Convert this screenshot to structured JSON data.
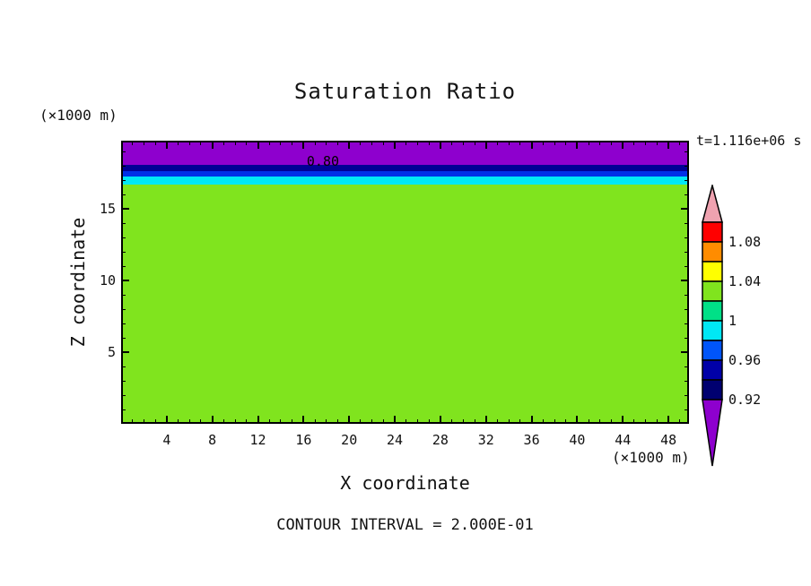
{
  "title": "Saturation Ratio",
  "header": {
    "y_units_label": "(×1000 m)",
    "time_label": "t=1.116e+06 s"
  },
  "footer": {
    "x_units_label": "(×1000 m)",
    "contour_interval": "CONTOUR INTERVAL = 2.000E-01"
  },
  "chart_data": {
    "type": "heatmap",
    "title": "Saturation Ratio",
    "xlabel": "X coordinate",
    "ylabel": "Z coordinate",
    "axis_units": "(×1000 m)",
    "xlim": [
      0,
      49.8
    ],
    "ylim": [
      0,
      19.75
    ],
    "x_ticks_major": [
      4,
      8,
      12,
      16,
      20,
      24,
      28,
      32,
      36,
      40,
      44,
      48
    ],
    "x_ticks_minor_step": 1,
    "y_ticks_major": [
      5,
      10,
      15
    ],
    "y_ticks_minor_step": 1,
    "grid": false,
    "time_annotation": "t=1.116e+06 s",
    "contour_interval_annotation": "CONTOUR INTERVAL = 2.000E-01",
    "contour_label": {
      "text": "0.80",
      "x": 17.7,
      "z": 18.3
    },
    "bands": [
      {
        "color": "#8E00CE",
        "z_from": 18.06,
        "z_to": 19.75
      },
      {
        "color": "#000096",
        "z_from": 17.63,
        "z_to": 18.06
      },
      {
        "color": "#0030E8",
        "z_from": 17.25,
        "z_to": 17.63
      },
      {
        "color": "#00E8F5",
        "z_from": 16.69,
        "z_to": 17.25
      },
      {
        "color": "#80E41E",
        "z_from": 0,
        "z_to": 16.69
      }
    ],
    "colorbar": {
      "tick_labels": [
        "1.08",
        "1.04",
        "1",
        "0.96",
        "0.92"
      ],
      "segments": [
        {
          "name": "above-range-arrow",
          "shape": "arrow-up",
          "color": "#EFA2B0"
        },
        {
          "color": "#FF0000",
          "label_below": "1.08"
        },
        {
          "color": "#FF8C00"
        },
        {
          "color": "#FFFF00",
          "label_below": "1.04"
        },
        {
          "color": "#80E41E"
        },
        {
          "color": "#00E087",
          "label_below": "1"
        },
        {
          "color": "#00E8F5"
        },
        {
          "color": "#0055FA",
          "label_below": "0.96"
        },
        {
          "color": "#0000A8"
        },
        {
          "color": "#000070",
          "label_below": "0.92"
        },
        {
          "name": "below-range-arrow",
          "shape": "arrow-down",
          "color": "#8E00CE"
        }
      ]
    }
  }
}
